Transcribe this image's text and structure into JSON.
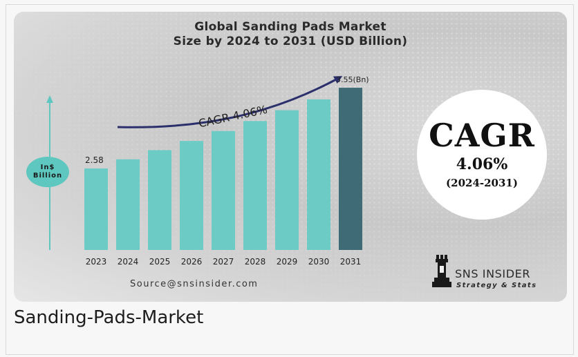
{
  "caption": "Sanding-Pads-Market",
  "unit_badge": {
    "line1": "In$",
    "line2": "Billion"
  },
  "cagr_box": {
    "label": "CAGR",
    "rate": "4.06%",
    "period": "(2024-2031)"
  },
  "source": "Source@snsinsider.com",
  "brand": {
    "name": "SNS INSIDER",
    "tagline": "Strategy & Stats"
  },
  "colors": {
    "bar": "#6ccbc4",
    "bar_highlight": "#3e6b75",
    "arrow": "#2b2f6b",
    "axis_arrow": "#5ec7bf"
  },
  "chart_data": {
    "type": "bar",
    "title_lines": [
      "Global Sanding Pads Market",
      "Size by 2024 to 2031 (USD Billion)"
    ],
    "categories": [
      "2023",
      "2024",
      "2025",
      "2026",
      "2027",
      "2028",
      "2029",
      "2030",
      "2031"
    ],
    "values": [
      2.58,
      2.69,
      2.8,
      2.91,
      3.03,
      3.15,
      3.28,
      3.41,
      3.55
    ],
    "data_labels": [
      "2.58",
      "",
      "",
      "",
      "",
      "",
      "",
      "",
      "3.55(Bn)"
    ],
    "highlight_index": 8,
    "annotation": "CAGR 4.06%",
    "ylim": [
      1.6,
      3.7
    ]
  }
}
